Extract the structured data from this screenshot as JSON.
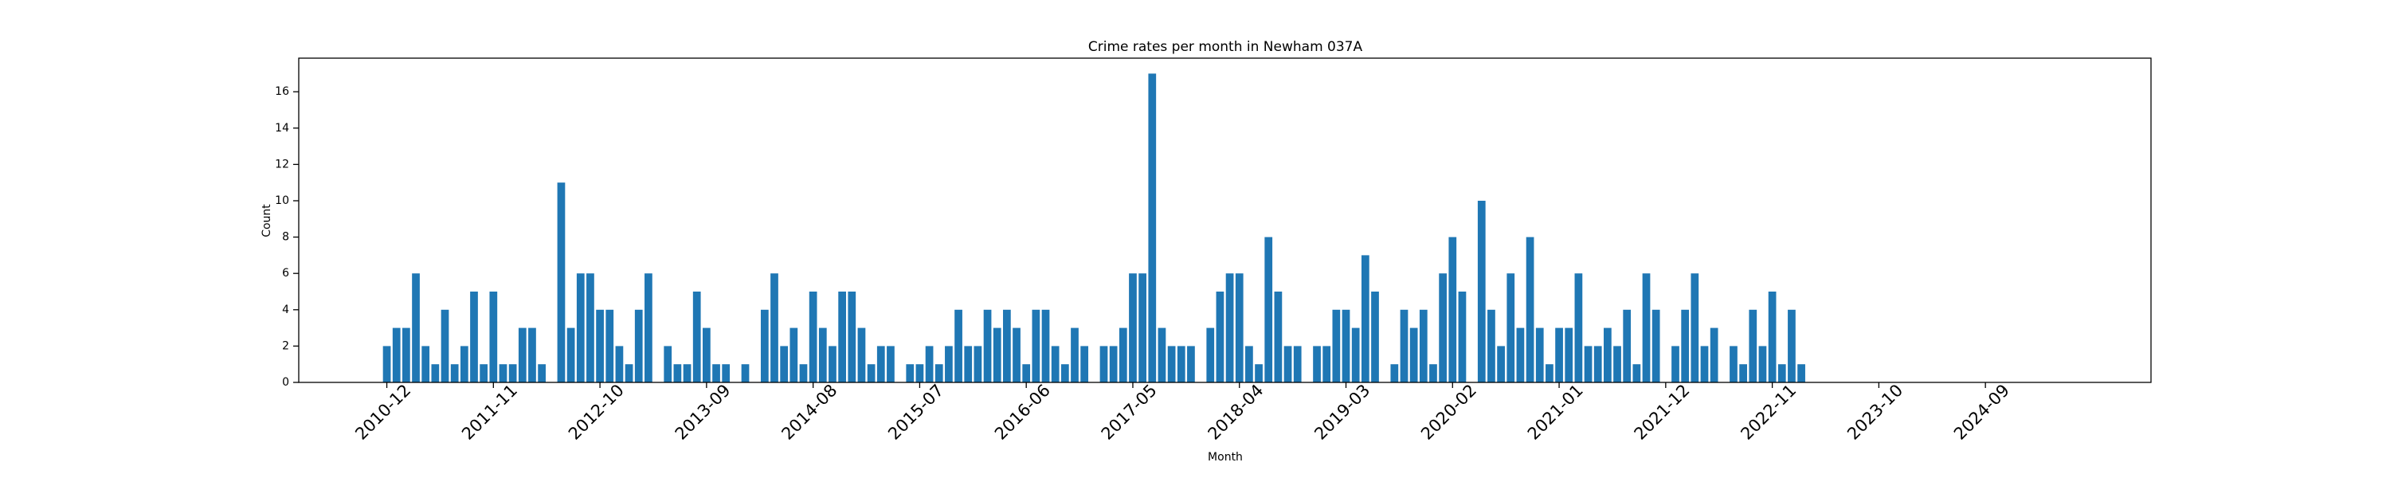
{
  "chart_data": {
    "type": "bar",
    "title": "Crime rates per month in Newham 037A",
    "x_label": "Month",
    "y_label": "Count",
    "color": "#1f77b4",
    "categories": [
      "2010-12",
      null,
      null,
      null,
      null,
      null,
      null,
      null,
      null,
      null,
      null,
      "2011-11",
      null,
      null,
      null,
      null,
      null,
      null,
      null,
      null,
      null,
      null,
      "2012-10",
      null,
      null,
      null,
      null,
      null,
      null,
      null,
      null,
      null,
      null,
      "2013-09",
      null,
      null,
      null,
      null,
      null,
      null,
      null,
      null,
      null,
      null,
      "2014-08",
      null,
      null,
      null,
      null,
      null,
      null,
      null,
      null,
      null,
      null,
      "2015-07",
      null,
      null,
      null,
      null,
      null,
      null,
      null,
      null,
      null,
      null,
      "2016-06",
      null,
      null,
      null,
      null,
      null,
      null,
      null,
      null,
      null,
      null,
      "2017-05",
      null,
      null,
      null,
      null,
      null,
      null,
      null,
      null,
      null,
      null,
      "2018-04",
      null,
      null,
      null,
      null,
      null,
      null,
      null,
      null,
      null,
      null,
      "2019-03",
      null,
      null,
      null,
      null,
      null,
      null,
      null,
      null,
      null,
      null,
      "2020-02",
      null,
      null,
      null,
      null,
      null,
      null,
      null,
      null,
      null,
      null,
      "2021-01",
      null,
      null,
      null,
      null,
      null,
      null,
      null,
      null,
      null,
      null,
      "2021-12",
      null,
      null,
      null,
      null,
      null,
      null,
      null,
      null,
      null,
      null,
      "2022-11",
      null,
      null,
      null,
      null,
      null,
      null,
      null,
      null,
      null,
      null,
      "2023-10",
      null,
      null,
      null,
      null,
      null,
      null,
      null,
      null,
      null,
      null,
      "2024-09",
      null,
      null,
      null,
      null,
      null,
      null,
      null,
      null
    ],
    "values": [
      2,
      3,
      3,
      6,
      2,
      1,
      4,
      1,
      2,
      5,
      1,
      5,
      1,
      1,
      3,
      3,
      1,
      0,
      11,
      3,
      6,
      6,
      4,
      4,
      2,
      1,
      4,
      6,
      0,
      2,
      1,
      1,
      5,
      3,
      1,
      1,
      0,
      1,
      0,
      4,
      6,
      2,
      3,
      1,
      5,
      3,
      2,
      5,
      5,
      3,
      1,
      2,
      2,
      0,
      1,
      1,
      2,
      1,
      2,
      4,
      2,
      2,
      4,
      3,
      4,
      3,
      1,
      4,
      4,
      2,
      1,
      3,
      2,
      0,
      2,
      2,
      3,
      6,
      6,
      17,
      3,
      2,
      2,
      2,
      0,
      3,
      5,
      6,
      6,
      2,
      1,
      8,
      5,
      2,
      2,
      0,
      2,
      2,
      4,
      4,
      3,
      7,
      5,
      0,
      1,
      4,
      3,
      4,
      1,
      6,
      8,
      5,
      0,
      10,
      4,
      2,
      6,
      3,
      8,
      3,
      1,
      3,
      3,
      6,
      2,
      2,
      3,
      2,
      4,
      1,
      6,
      4,
      0,
      2,
      4,
      6,
      2,
      3,
      0,
      2,
      1,
      4,
      2,
      5,
      1,
      4,
      1,
      0,
      0,
      0,
      0,
      0,
      0,
      0,
      0,
      0,
      0,
      0,
      0,
      0,
      0,
      0,
      0,
      0,
      0,
      0,
      0,
      0,
      0,
      0,
      0,
      0,
      0,
      0
    ],
    "ylim": [
      0,
      17.85
    ],
    "yticks": [
      0,
      2,
      4,
      6,
      8,
      10,
      12,
      14,
      16
    ],
    "grid": false
  }
}
